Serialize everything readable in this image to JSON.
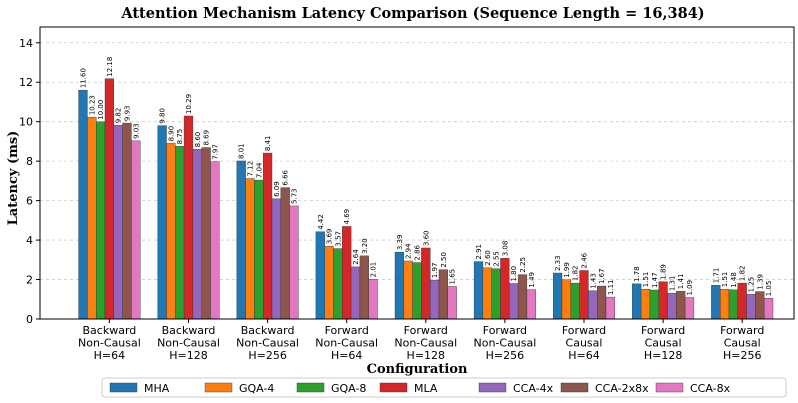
{
  "chart_data": {
    "type": "bar",
    "title": "Attention Mechanism Latency Comparison (Sequence Length = 16,384)",
    "xlabel": "Configuration",
    "ylabel": "Latency (ms)",
    "ylim": [
      0,
      14.8
    ],
    "yticks": [
      "0",
      "2",
      "4",
      "6",
      "8",
      "10",
      "12",
      "14"
    ],
    "grid": "horizontal dashed",
    "legend_position": "bottom",
    "categories": [
      [
        "Backward",
        "Non-Causal",
        "H=64"
      ],
      [
        "Backward",
        "Non-Causal",
        "H=128"
      ],
      [
        "Backward",
        "Non-Causal",
        "H=256"
      ],
      [
        "Forward",
        "Non-Causal",
        "H=64"
      ],
      [
        "Forward",
        "Non-Causal",
        "H=128"
      ],
      [
        "Forward",
        "Non-Causal",
        "H=256"
      ],
      [
        "Forward",
        "Causal",
        "H=64"
      ],
      [
        "Forward",
        "Causal",
        "H=128"
      ],
      [
        "Forward",
        "Causal",
        "H=256"
      ]
    ],
    "series": [
      {
        "name": "MHA",
        "color": "#1f77b4",
        "values": [
          11.6,
          9.8,
          8.01,
          4.42,
          3.39,
          2.91,
          2.33,
          1.78,
          1.71
        ]
      },
      {
        "name": "GQA-4",
        "color": "#ff7f0e",
        "values": [
          10.23,
          8.9,
          7.12,
          3.69,
          2.94,
          2.6,
          1.99,
          1.51,
          1.51
        ]
      },
      {
        "name": "GQA-8",
        "color": "#2ca02c",
        "values": [
          10.0,
          8.75,
          7.04,
          3.57,
          2.86,
          2.55,
          1.82,
          1.47,
          1.48
        ]
      },
      {
        "name": "MLA",
        "color": "#d62728",
        "values": [
          12.18,
          10.29,
          8.41,
          4.69,
          3.6,
          3.08,
          2.46,
          1.89,
          1.82
        ]
      },
      {
        "name": "CCA-4x",
        "color": "#9467bd",
        "values": [
          9.82,
          8.6,
          6.09,
          2.64,
          1.97,
          1.8,
          1.43,
          1.31,
          1.25
        ]
      },
      {
        "name": "CCA-2x8x",
        "color": "#8c564b",
        "values": [
          9.93,
          8.69,
          6.66,
          3.2,
          2.5,
          2.25,
          1.67,
          1.41,
          1.39
        ]
      },
      {
        "name": "CCA-8x",
        "color": "#e377c2",
        "values": [
          9.03,
          7.97,
          5.73,
          2.01,
          1.65,
          1.49,
          1.11,
          1.09,
          1.05
        ]
      }
    ]
  }
}
